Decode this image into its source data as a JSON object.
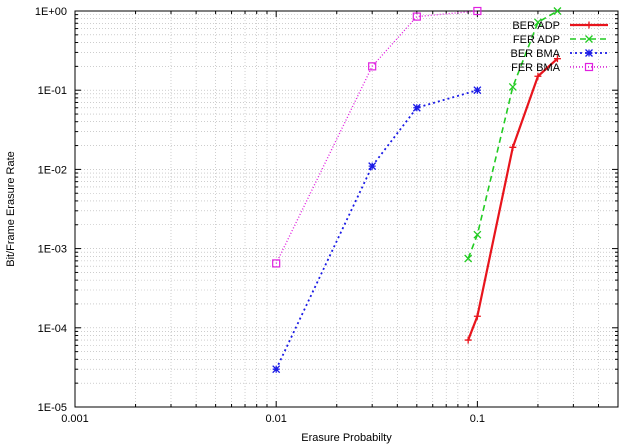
{
  "chart_data": {
    "type": "line",
    "title": "",
    "xlabel": "Erasure Probabilty",
    "ylabel": "Bit/Frame Erasure Rate",
    "x_scale": "log",
    "y_scale": "log",
    "xlim": [
      0.001,
      0.5
    ],
    "ylim": [
      1e-05,
      1
    ],
    "grid": true,
    "legend_position": "top-right",
    "x_ticks": [
      {
        "value": 0.001,
        "label": "0.001"
      },
      {
        "value": 0.01,
        "label": "0.01"
      },
      {
        "value": 0.1,
        "label": "0.1"
      }
    ],
    "y_ticks": [
      {
        "value": 1e-05,
        "label": "1E-05"
      },
      {
        "value": 0.0001,
        "label": "1E-04"
      },
      {
        "value": 0.001,
        "label": "1E-03"
      },
      {
        "value": 0.01,
        "label": "1E-02"
      },
      {
        "value": 0.1,
        "label": "1E-01"
      },
      {
        "value": 1,
        "label": "1E+00"
      }
    ],
    "series": [
      {
        "name": "BER ADP",
        "color": "#e8141c",
        "marker": "plus",
        "dash": "solid",
        "width": 2.2,
        "x": [
          0.09,
          0.1,
          0.15,
          0.2,
          0.25
        ],
        "y": [
          7e-05,
          0.00014,
          0.019,
          0.15,
          0.25
        ]
      },
      {
        "name": "FER ADP",
        "color": "#22cc22",
        "marker": "cross",
        "dash": "dashed",
        "width": 1.6,
        "x": [
          0.09,
          0.1,
          0.15,
          0.2,
          0.25
        ],
        "y": [
          0.00075,
          0.0015,
          0.11,
          0.72,
          1.0
        ]
      },
      {
        "name": "BER BMA",
        "color": "#1a1ae6",
        "marker": "star",
        "dash": "dotted",
        "width": 1.8,
        "x": [
          0.01,
          0.03,
          0.05,
          0.1
        ],
        "y": [
          3e-05,
          0.011,
          0.06,
          0.1
        ]
      },
      {
        "name": "FER BMA",
        "color": "#e020e0",
        "marker": "square",
        "dash": "fine-dotted",
        "width": 1.4,
        "x": [
          0.01,
          0.03,
          0.05,
          0.1
        ],
        "y": [
          0.00065,
          0.2,
          0.85,
          1.0
        ]
      }
    ]
  }
}
